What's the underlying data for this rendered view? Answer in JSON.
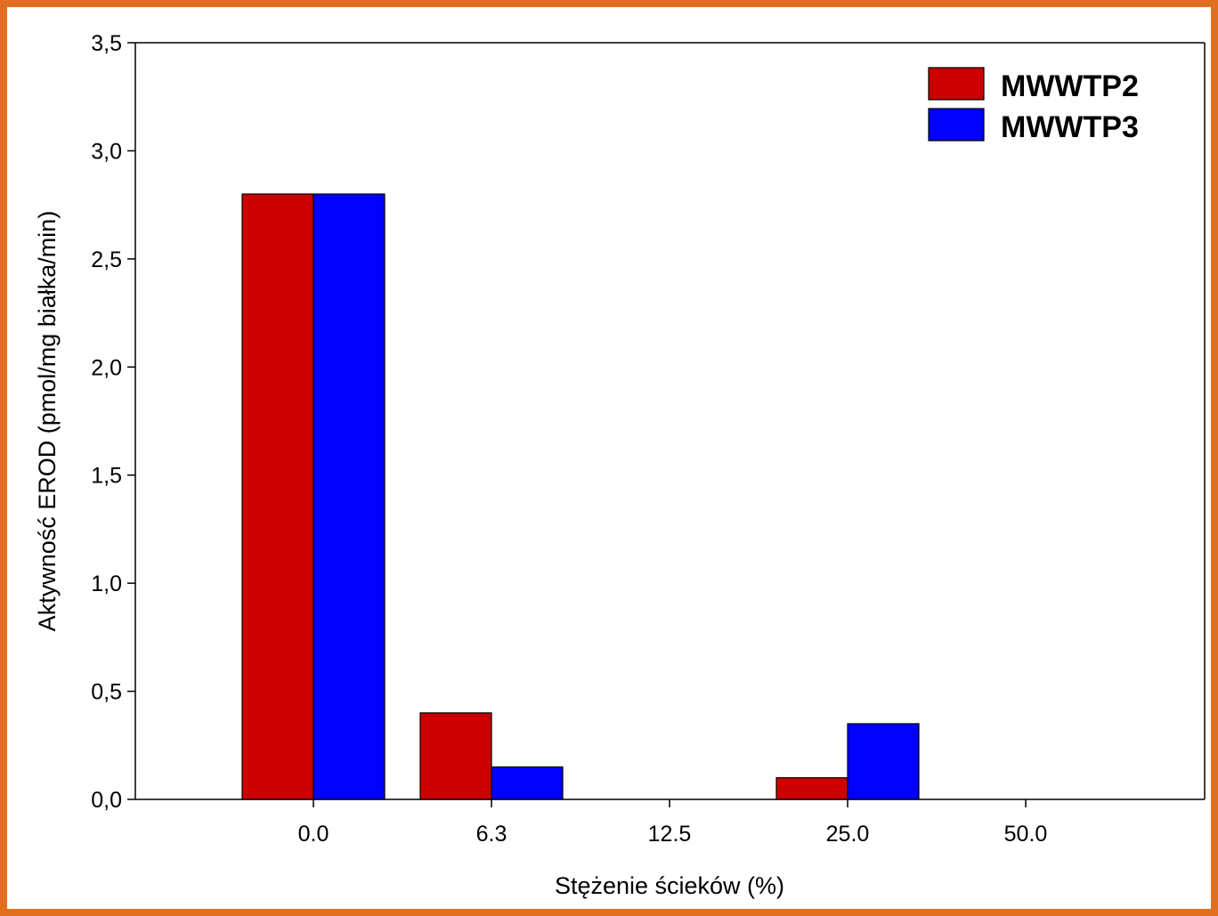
{
  "chart_data": {
    "type": "bar",
    "title": "",
    "xlabel": "Stężenie ścieków (%)",
    "ylabel": "Aktywność EROD (pmol/mg białka/min)",
    "categories": [
      "0.0",
      "6.3",
      "12.5",
      "25.0",
      "50.0"
    ],
    "series": [
      {
        "name": "MWWTP2",
        "color": "#CC0000",
        "values": [
          2.8,
          0.4,
          0.0,
          0.1,
          0.0
        ]
      },
      {
        "name": "MWWTP3",
        "color": "#0000FF",
        "values": [
          2.8,
          0.15,
          0.0,
          0.35,
          0.0
        ]
      }
    ],
    "ylim": [
      0,
      3.5
    ],
    "yticks": [
      {
        "value": 0.0,
        "label": "0,0"
      },
      {
        "value": 0.5,
        "label": "0,5"
      },
      {
        "value": 1.0,
        "label": "1,0"
      },
      {
        "value": 1.5,
        "label": "1,5"
      },
      {
        "value": 2.0,
        "label": "2,0"
      },
      {
        "value": 2.5,
        "label": "2,5"
      },
      {
        "value": 3.0,
        "label": "3,0"
      },
      {
        "value": 3.5,
        "label": "3,5"
      }
    ],
    "grid": false,
    "legend": "top-right",
    "frame_color": "#E07020"
  }
}
